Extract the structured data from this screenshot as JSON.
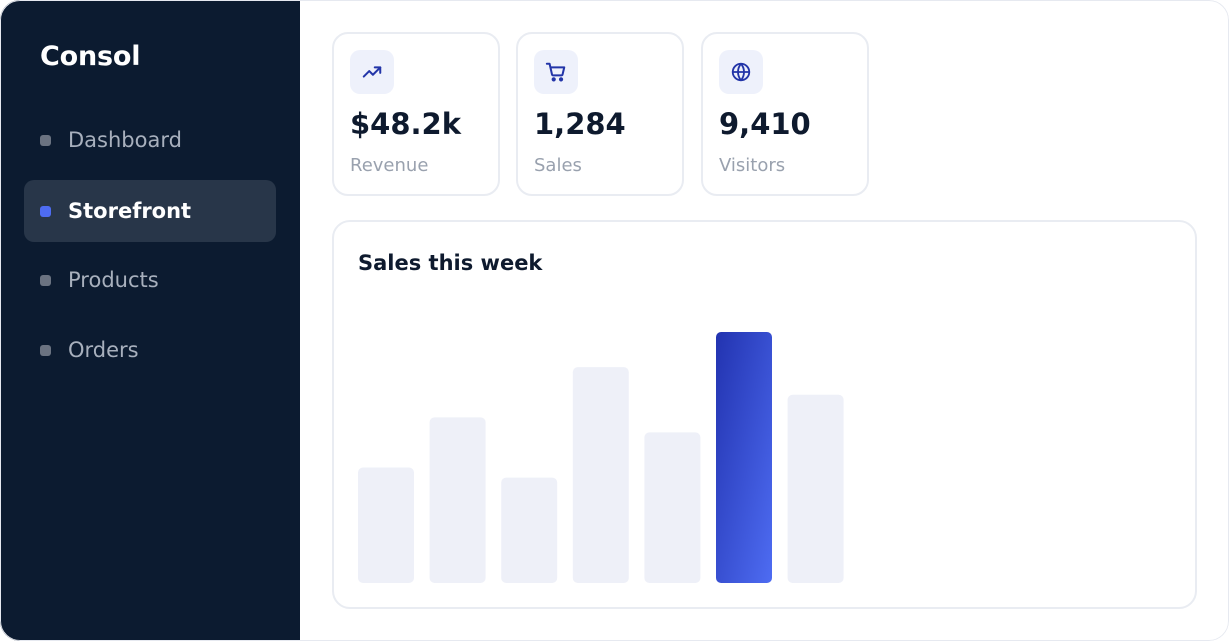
{
  "app": {
    "brand": "Consol"
  },
  "sidebar": {
    "items": [
      {
        "label": "Dashboard",
        "active": false
      },
      {
        "label": "Storefront",
        "active": true
      },
      {
        "label": "Products",
        "active": false
      },
      {
        "label": "Orders",
        "active": false
      }
    ]
  },
  "stats": [
    {
      "icon": "trending-up-icon",
      "value": "$48.2k",
      "label": "Revenue"
    },
    {
      "icon": "shopping-cart-icon",
      "value": "1,284",
      "label": "Sales"
    },
    {
      "icon": "globe-icon",
      "value": "9,410",
      "label": "Visitors"
    }
  ],
  "colors": {
    "sidebar_bg": "#0c1b30",
    "active_item_bg": "#283649",
    "accent": "#4e6cf2",
    "accent_dark": "#2233b0",
    "bar_muted": "#eef0f8"
  },
  "chart_data": {
    "type": "bar",
    "title": "Sales this week",
    "xlabel": "",
    "ylabel": "",
    "grid": false,
    "values": [
      46,
      66,
      42,
      86,
      60,
      100,
      75
    ],
    "ylim": [
      0,
      100
    ],
    "highlight_index": 5
  }
}
